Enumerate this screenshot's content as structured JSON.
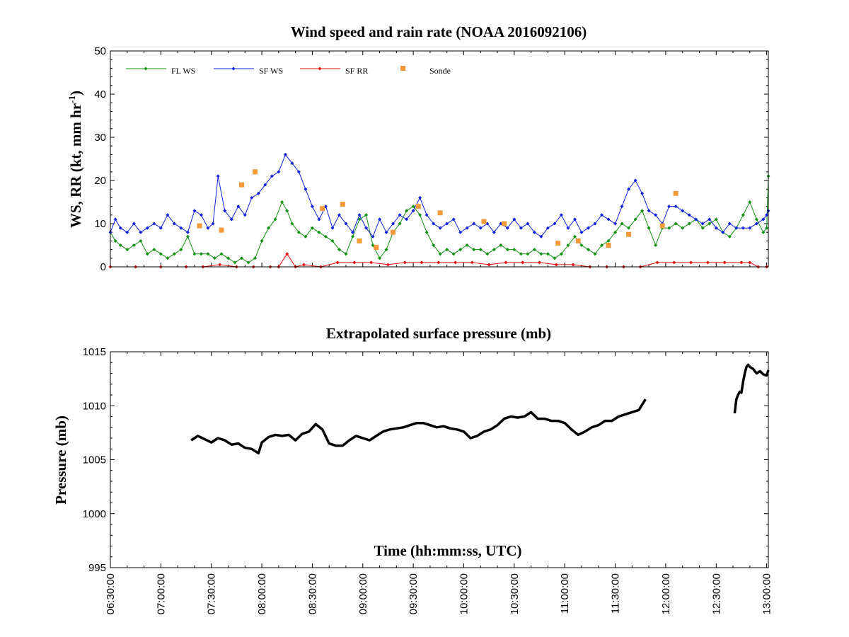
{
  "chart_data": [
    {
      "type": "line",
      "title": "Wind speed and rain rate (NOAA 2016092106)",
      "ylabel": "WS, RR (kt, mm hr",
      "ylabel_sup": "-1",
      "ylabel_close": ")",
      "ylim": [
        0,
        50
      ],
      "yticks": [
        "0",
        "10",
        "20",
        "30",
        "40",
        "50"
      ],
      "xlim": [
        "06:30:00",
        "13:01:00"
      ],
      "legend_position": "top-left",
      "series": [
        {
          "name": "FL WS",
          "color": "#119111",
          "marker": "diamond",
          "x": [
            "06:30",
            "06:33",
            "06:36",
            "06:40",
            "06:44",
            "06:48",
            "06:52",
            "06:56",
            "07:00",
            "07:04",
            "07:08",
            "07:12",
            "07:16",
            "07:20",
            "07:24",
            "07:28",
            "07:32",
            "07:36",
            "07:40",
            "07:44",
            "07:48",
            "07:52",
            "07:56",
            "08:00",
            "08:04",
            "08:08",
            "08:12",
            "08:15",
            "08:18",
            "08:22",
            "08:26",
            "08:30",
            "08:34",
            "08:38",
            "08:42",
            "08:46",
            "08:50",
            "08:54",
            "08:58",
            "09:02",
            "09:06",
            "09:10",
            "09:14",
            "09:18",
            "09:22",
            "09:26",
            "09:30",
            "09:34",
            "09:38",
            "09:42",
            "09:46",
            "09:50",
            "09:54",
            "09:58",
            "10:02",
            "10:06",
            "10:10",
            "10:14",
            "10:18",
            "10:22",
            "10:26",
            "10:30",
            "10:34",
            "10:38",
            "10:42",
            "10:46",
            "10:50",
            "10:54",
            "10:58",
            "11:02",
            "11:06",
            "11:10",
            "11:14",
            "11:18",
            "11:22",
            "11:26",
            "11:30",
            "11:34",
            "11:38",
            "11:42",
            "11:46",
            "11:50",
            "11:54",
            "11:58",
            "12:02",
            "12:06",
            "12:10",
            "12:14",
            "12:18",
            "12:22",
            "12:26",
            "12:30",
            "12:34",
            "12:38",
            "12:42",
            "12:46",
            "12:50",
            "12:54",
            "12:58",
            "13:00",
            "13:01"
          ],
          "values": [
            8,
            6,
            5,
            4,
            5,
            6,
            3,
            4,
            3,
            2,
            3,
            4,
            7,
            3,
            3,
            3,
            2,
            3,
            2,
            1,
            2,
            1,
            2,
            6,
            9,
            11,
            15,
            13,
            10,
            8,
            7,
            9,
            8,
            7,
            6,
            4,
            3,
            7,
            11,
            12,
            5,
            2,
            4,
            8,
            10,
            13,
            14,
            12,
            8,
            5,
            3,
            4,
            3,
            4,
            5,
            4,
            4,
            3,
            4,
            5,
            4,
            4,
            3,
            3,
            4,
            3,
            3,
            2,
            3,
            5,
            7,
            5,
            4,
            3,
            5,
            6,
            8,
            10,
            9,
            11,
            13,
            9,
            5,
            9,
            9,
            10,
            9,
            10,
            11,
            9,
            10,
            11,
            8,
            7,
            9,
            12,
            15,
            11,
            8,
            9,
            21
          ]
        },
        {
          "name": "SF WS",
          "color": "#0f20e0",
          "marker": "diamond",
          "x": [
            "06:30",
            "06:33",
            "06:36",
            "06:40",
            "06:44",
            "06:48",
            "06:52",
            "06:56",
            "07:00",
            "07:04",
            "07:08",
            "07:12",
            "07:16",
            "07:20",
            "07:24",
            "07:28",
            "07:31",
            "07:34",
            "07:38",
            "07:42",
            "07:46",
            "07:50",
            "07:54",
            "07:58",
            "08:02",
            "08:06",
            "08:10",
            "08:14",
            "08:18",
            "08:22",
            "08:26",
            "08:30",
            "08:34",
            "08:38",
            "08:42",
            "08:46",
            "08:50",
            "08:54",
            "08:58",
            "09:02",
            "09:06",
            "09:10",
            "09:14",
            "09:18",
            "09:22",
            "09:26",
            "09:30",
            "09:34",
            "09:38",
            "09:42",
            "09:46",
            "09:50",
            "09:54",
            "09:58",
            "10:02",
            "10:06",
            "10:10",
            "10:14",
            "10:18",
            "10:22",
            "10:26",
            "10:30",
            "10:34",
            "10:38",
            "10:42",
            "10:46",
            "10:50",
            "10:54",
            "10:58",
            "11:02",
            "11:06",
            "11:10",
            "11:14",
            "11:18",
            "11:22",
            "11:26",
            "11:30",
            "11:34",
            "11:38",
            "11:42",
            "11:46",
            "11:50",
            "11:54",
            "11:58",
            "12:02",
            "12:06",
            "12:10",
            "12:14",
            "12:18",
            "12:22",
            "12:26",
            "12:30",
            "12:34",
            "12:38",
            "12:42",
            "12:46",
            "12:50",
            "12:54",
            "12:58",
            "13:00",
            "13:01"
          ],
          "values": [
            8,
            11,
            9,
            8,
            10,
            8,
            9,
            10,
            9,
            12,
            10,
            9,
            8,
            13,
            12,
            9,
            10,
            21,
            13,
            11,
            14,
            12,
            16,
            17,
            19,
            21,
            22,
            26,
            24,
            22,
            18,
            14,
            11,
            14,
            9,
            12,
            10,
            8,
            12,
            9,
            7,
            11,
            8,
            10,
            12,
            11,
            13,
            16,
            12,
            10,
            9,
            10,
            11,
            8,
            9,
            10,
            9,
            10,
            8,
            10,
            9,
            11,
            9,
            10,
            8,
            7,
            9,
            10,
            12,
            9,
            11,
            8,
            9,
            10,
            12,
            11,
            10,
            14,
            18,
            20,
            17,
            13,
            12,
            10,
            14,
            14,
            13,
            12,
            11,
            10,
            11,
            9,
            8,
            10,
            9,
            9,
            9,
            10,
            11,
            12,
            13
          ]
        },
        {
          "name": "SF RR",
          "color": "#e01010",
          "marker": "diamond",
          "x": [
            "06:30",
            "06:45",
            "07:00",
            "07:15",
            "07:25",
            "07:35",
            "07:45",
            "07:55",
            "08:05",
            "08:10",
            "08:15",
            "08:20",
            "08:25",
            "08:35",
            "08:45",
            "08:55",
            "09:05",
            "09:15",
            "09:25",
            "09:35",
            "09:45",
            "09:55",
            "10:05",
            "10:15",
            "10:25",
            "10:35",
            "10:45",
            "10:55",
            "11:05",
            "11:15",
            "11:25",
            "11:35",
            "11:45",
            "11:55",
            "12:05",
            "12:15",
            "12:25",
            "12:35",
            "12:45",
            "12:50",
            "12:55",
            "13:00"
          ],
          "values": [
            0,
            0,
            0,
            0,
            0,
            0.5,
            0,
            0,
            0,
            0,
            3,
            0,
            0.5,
            0,
            1,
            1,
            1,
            0.5,
            1,
            1,
            1,
            1,
            1,
            0.5,
            1,
            1,
            1,
            0.5,
            0.5,
            0,
            0,
            0,
            0,
            1,
            1,
            1,
            1,
            1,
            1,
            1,
            0,
            0
          ]
        },
        {
          "name": "Sonde",
          "color": "#f59a3a",
          "marker": "square",
          "x": [
            "07:23",
            "07:36",
            "07:48",
            "07:56",
            "08:36",
            "08:48",
            "08:58",
            "09:08",
            "09:18",
            "09:33",
            "09:46",
            "10:12",
            "10:24",
            "10:56",
            "11:08",
            "11:26",
            "11:38",
            "11:58",
            "12:06"
          ],
          "values": [
            9.5,
            8.5,
            19,
            22,
            13.5,
            14.5,
            6,
            4.5,
            8,
            14,
            12.5,
            10.5,
            10,
            5.5,
            6,
            5,
            7.5,
            9.5,
            17
          ]
        }
      ]
    },
    {
      "type": "line",
      "title": "Extrapolated surface pressure (mb)",
      "ylabel": "Pressure (mb)",
      "xlabel": "Time (hh:mm:ss, UTC)",
      "ylim": [
        995,
        1015
      ],
      "yticks": [
        "995",
        "1000",
        "1005",
        "1010",
        "1015"
      ],
      "xticks": [
        "06:30:00",
        "07:00:00",
        "07:30:00",
        "08:00:00",
        "08:30:00",
        "09:00:00",
        "09:30:00",
        "10:00:00",
        "10:30:00",
        "11:00:00",
        "11:30:00",
        "12:00:00",
        "12:30:00",
        "13:00:00"
      ],
      "xlim": [
        "06:30:00",
        "13:01:00"
      ],
      "series": [
        {
          "name": "",
          "color": "#000000",
          "segments": [
            {
              "x": [
                "07:18",
                "07:22",
                "07:26",
                "07:30",
                "07:34",
                "07:38",
                "07:42",
                "07:46",
                "07:50",
                "07:54",
                "07:58",
                "08:00",
                "08:04",
                "08:08",
                "08:12",
                "08:16",
                "08:20",
                "08:24",
                "08:28",
                "08:32",
                "08:36",
                "08:40",
                "08:44",
                "08:48",
                "08:52",
                "08:56",
                "09:00",
                "09:04",
                "09:08",
                "09:12",
                "09:16",
                "09:20",
                "09:24",
                "09:28",
                "09:32",
                "09:36",
                "09:40",
                "09:44",
                "09:48",
                "09:52",
                "09:56",
                "10:00",
                "10:04",
                "10:08",
                "10:12",
                "10:16",
                "10:20",
                "10:24",
                "10:28",
                "10:32",
                "10:36",
                "10:40",
                "10:44",
                "10:48",
                "10:52",
                "10:56",
                "11:00",
                "11:04",
                "11:08",
                "11:12",
                "11:16",
                "11:20",
                "11:24",
                "11:28",
                "11:32",
                "11:36",
                "11:40",
                "11:44",
                "11:48"
              ],
              "values": [
                1006.8,
                1007.2,
                1006.9,
                1006.6,
                1007.0,
                1006.8,
                1006.4,
                1006.5,
                1006.1,
                1006.0,
                1005.6,
                1006.6,
                1007.1,
                1007.3,
                1007.2,
                1007.3,
                1006.8,
                1007.4,
                1007.6,
                1008.3,
                1007.8,
                1006.5,
                1006.3,
                1006.3,
                1006.8,
                1007.2,
                1007.0,
                1006.8,
                1007.2,
                1007.6,
                1007.8,
                1007.9,
                1008.0,
                1008.2,
                1008.4,
                1008.4,
                1008.2,
                1008.0,
                1008.1,
                1007.9,
                1007.8,
                1007.6,
                1007.0,
                1007.2,
                1007.6,
                1007.8,
                1008.2,
                1008.8,
                1009.0,
                1008.9,
                1009.0,
                1009.4,
                1008.8,
                1008.8,
                1008.6,
                1008.6,
                1008.4,
                1007.8,
                1007.3,
                1007.6,
                1008.0,
                1008.2,
                1008.6,
                1008.6,
                1009.0,
                1009.2,
                1009.4,
                1009.6,
                1010.6
              ]
            },
            {
              "x": [
                "12:41",
                "12:42",
                "12:43",
                "12:44",
                "12:45",
                "12:46",
                "12:47",
                "12:48",
                "12:49",
                "12:50",
                "12:52",
                "12:54",
                "12:56",
                "12:58",
                "13:00",
                "13:01"
              ],
              "values": [
                1009.3,
                1010.6,
                1011.0,
                1011.3,
                1011.2,
                1012.2,
                1013.0,
                1013.6,
                1013.8,
                1013.6,
                1013.4,
                1013.0,
                1013.2,
                1012.9,
                1012.8,
                1013.3
              ]
            }
          ]
        }
      ]
    }
  ]
}
